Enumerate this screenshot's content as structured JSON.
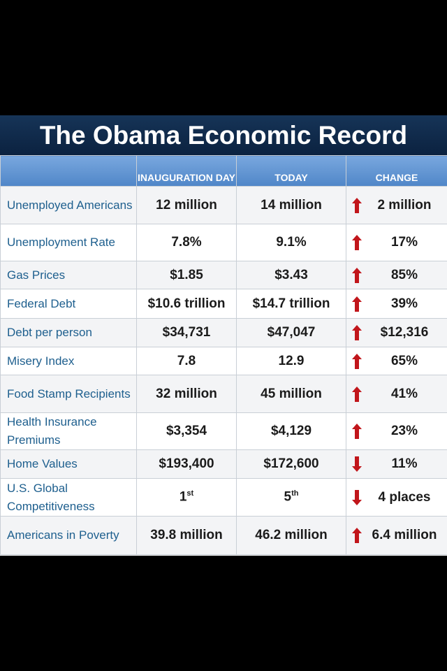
{
  "title": "The Obama Economic Record",
  "table": {
    "header": [
      "INAUGURATION DAY",
      "TODAY",
      "CHANGE"
    ],
    "rows": [
      [
        "Unemployed Americans",
        "12 million",
        "14 million",
        "2 million"
      ],
      [
        "Unemployment Rate",
        "7.8%",
        "9.1%",
        "17%"
      ],
      [
        "Gas Prices",
        "$1.85",
        "$3.43",
        "85%"
      ],
      [
        "Federal Debt",
        "$10.6 trillion",
        "$14.7 trillion",
        "39%"
      ],
      [
        "Debt per person",
        "$34,731",
        "$47,047",
        "$12,316"
      ],
      [
        "Misery Index",
        "7.8",
        "12.9",
        "65%"
      ],
      [
        "Food Stamp Recipients",
        "32 million",
        "45 million",
        "41%"
      ],
      [
        "Health Insurance Premiums",
        "$3,354",
        "$4,129",
        "23%"
      ],
      [
        "Home Values",
        "$193,400",
        "$172,600",
        "11%"
      ],
      [
        "U.S. Global Competitiveness",
        {
          "text": "1",
          "sup": "st"
        },
        {
          "text": "5",
          "sup": "th"
        },
        "4 places"
      ],
      [
        "Americans in Poverty",
        "39.8 million",
        "46.2 million",
        "6.4 million"
      ]
    ]
  }
}
